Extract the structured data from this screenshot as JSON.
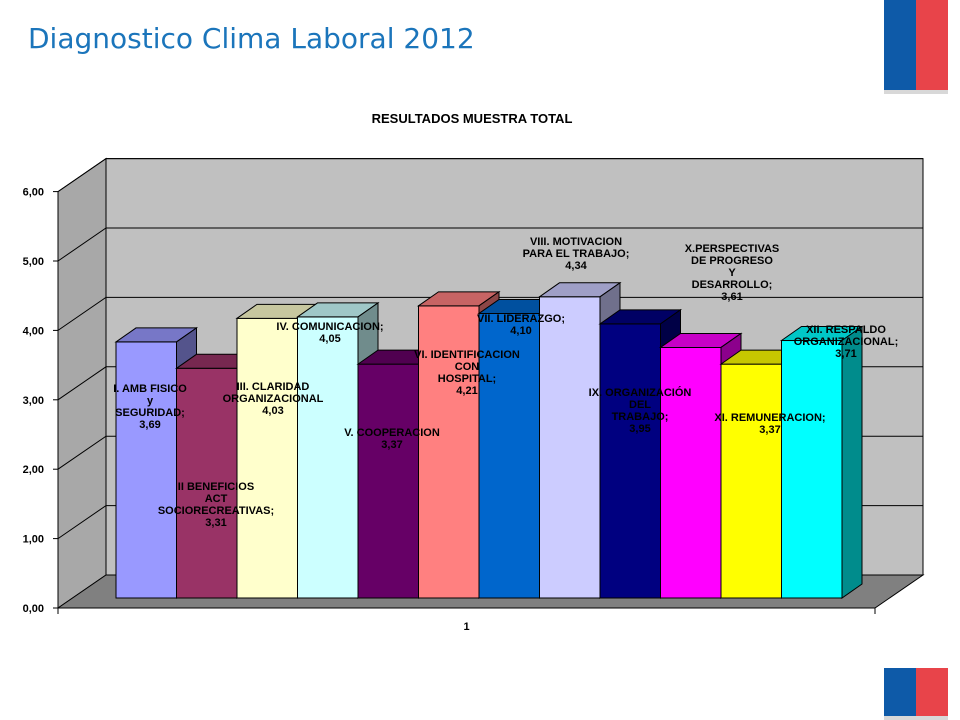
{
  "page": {
    "title": "Diagnostico Clima Laboral 2012"
  },
  "chart_data": {
    "type": "bar",
    "title": "RESULTADOS MUESTRA TOTAL",
    "xlabel": "",
    "ylabel": "",
    "categories": [
      "1"
    ],
    "ylim": [
      0,
      6
    ],
    "yticks": [
      "0,00",
      "1,00",
      "2,00",
      "3,00",
      "4,00",
      "5,00",
      "6,00"
    ],
    "grid": true,
    "legend": "none",
    "series": [
      {
        "name": "I. AMB FISICO y SEGURIDAD",
        "value": 3.69,
        "label": [
          "I. AMB FISICO",
          "y",
          "SEGURIDAD;",
          "3,69"
        ],
        "color": "#9999ff"
      },
      {
        "name": "II BENEFICIOS ACT SOCIORECREATIVAS",
        "value": 3.31,
        "label": [
          "II BENEFICIOS",
          "ACT",
          "SOCIORECREATIVAS;",
          "3,31"
        ],
        "color": "#993366"
      },
      {
        "name": "III. CLARIDAD ORGANIZACIONAL",
        "value": 4.03,
        "label": [
          "III. CLARIDAD",
          "ORGANIZACIONAL",
          "4,03"
        ],
        "color": "#ffffcc"
      },
      {
        "name": "IV. COMUNICACION",
        "value": 4.05,
        "label": [
          "IV. COMUNICACION;",
          "4,05"
        ],
        "color": "#ccffff"
      },
      {
        "name": "V. COOPERACION",
        "value": 3.37,
        "label": [
          "V. COOPERACION",
          "3,37"
        ],
        "color": "#660066"
      },
      {
        "name": "VI. IDENTIFICACION CON HOSPITAL",
        "value": 4.21,
        "label": [
          "VI. IDENTIFICACION",
          "CON",
          "HOSPITAL;",
          "4,21"
        ],
        "color": "#ff8080"
      },
      {
        "name": "VII. LIDERAZGO",
        "value": 4.1,
        "label": [
          "VII. LIDERAZGO;",
          "4,10"
        ],
        "color": "#0066cc"
      },
      {
        "name": "VIII. MOTIVACION PARA EL TRABAJO",
        "value": 4.34,
        "label": [
          "VIII. MOTIVACION",
          "PARA EL TRABAJO;",
          "4,34"
        ],
        "color": "#ccccff"
      },
      {
        "name": "IX. ORGANIZACIÓN DEL TRABAJO",
        "value": 3.95,
        "label": [
          "IX. ORGANIZACIÓN",
          "DEL",
          "TRABAJO;",
          "3,95"
        ],
        "color": "#000080"
      },
      {
        "name": "X.PERSPECTIVAS DE PROGRESO Y DESARROLLO",
        "value": 3.61,
        "label": [
          "X.PERSPECTIVAS",
          "DE PROGRESO",
          "Y",
          "DESARROLLO;",
          "3,61"
        ],
        "color": "#ff00ff"
      },
      {
        "name": "XI. REMUNERACION",
        "value": 3.37,
        "label": [
          "XI. REMUNERACION;",
          "3,37"
        ],
        "color": "#ffff00"
      },
      {
        "name": "XII. RESPALDO ORGANIZACIONAL",
        "value": 3.71,
        "label": [
          "XII. RESPALDO",
          "ORGANIZACIONAL;",
          "3,71"
        ],
        "color": "#00ffff"
      }
    ]
  }
}
